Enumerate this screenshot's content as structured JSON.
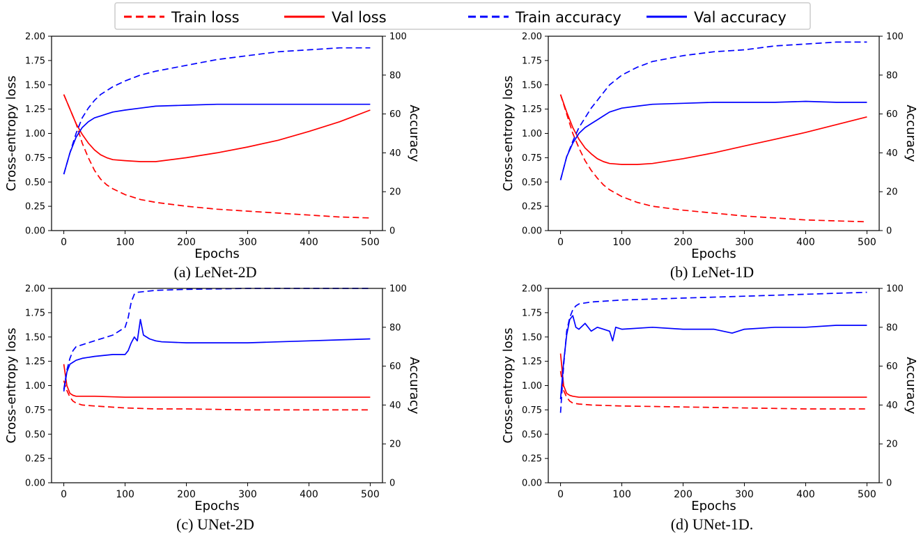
{
  "legend": {
    "placement": "top",
    "items": [
      {
        "label": "Train loss",
        "color": "#ff0000",
        "style": "dashed"
      },
      {
        "label": "Val loss",
        "color": "#ff0000",
        "style": "solid"
      },
      {
        "label": "Train accuracy",
        "color": "#0000ff",
        "style": "dashed"
      },
      {
        "label": "Val accuracy",
        "color": "#0000ff",
        "style": "solid"
      }
    ]
  },
  "colors": {
    "loss": "#ff0000",
    "accuracy": "#0000ff"
  },
  "chart_data": [
    {
      "type": "line",
      "caption": "(a) LeNet-2D",
      "xlabel": "Epochs",
      "ylabel_left": "Cross-entropy loss",
      "ylabel_right": "Accuracy",
      "xlim": [
        -20,
        520
      ],
      "ylim_left": [
        0,
        2.0
      ],
      "ylim_right": [
        0,
        100
      ],
      "xticks": [
        0,
        100,
        200,
        300,
        400,
        500
      ],
      "yticks_left": [
        0.0,
        0.25,
        0.5,
        0.75,
        1.0,
        1.25,
        1.5,
        1.75,
        2.0
      ],
      "yticks_right": [
        0,
        20,
        40,
        60,
        80,
        100
      ],
      "grid": false,
      "series": [
        {
          "name": "Train loss",
          "axis": "left",
          "style": "dashed",
          "x": [
            0,
            10,
            20,
            30,
            40,
            50,
            60,
            70,
            80,
            100,
            125,
            150,
            200,
            250,
            300,
            350,
            400,
            450,
            500
          ],
          "y": [
            1.4,
            1.25,
            1.1,
            0.9,
            0.75,
            0.62,
            0.53,
            0.47,
            0.43,
            0.37,
            0.32,
            0.29,
            0.25,
            0.22,
            0.2,
            0.18,
            0.16,
            0.14,
            0.13
          ]
        },
        {
          "name": "Val loss",
          "axis": "left",
          "style": "solid",
          "x": [
            0,
            10,
            20,
            30,
            40,
            50,
            60,
            70,
            80,
            100,
            125,
            150,
            200,
            250,
            300,
            350,
            400,
            450,
            500
          ],
          "y": [
            1.4,
            1.25,
            1.1,
            0.99,
            0.9,
            0.83,
            0.78,
            0.75,
            0.73,
            0.72,
            0.71,
            0.71,
            0.75,
            0.8,
            0.86,
            0.93,
            1.02,
            1.12,
            1.24
          ]
        },
        {
          "name": "Train accuracy",
          "axis": "right",
          "style": "dashed",
          "x": [
            0,
            10,
            20,
            30,
            40,
            50,
            60,
            70,
            80,
            100,
            125,
            150,
            200,
            250,
            300,
            350,
            400,
            450,
            500
          ],
          "y": [
            29,
            40,
            50,
            58,
            63,
            67,
            70,
            72,
            74,
            77,
            80,
            82,
            85,
            88,
            90,
            92,
            93,
            94,
            94
          ]
        },
        {
          "name": "Val accuracy",
          "axis": "right",
          "style": "solid",
          "x": [
            0,
            10,
            20,
            30,
            40,
            50,
            60,
            70,
            80,
            100,
            125,
            150,
            200,
            250,
            300,
            350,
            400,
            450,
            500
          ],
          "y": [
            29,
            40,
            48,
            53,
            56,
            58,
            59,
            60,
            61,
            62,
            63,
            64,
            64.5,
            65,
            65,
            65,
            65,
            65,
            65
          ]
        }
      ]
    },
    {
      "type": "line",
      "caption": "(b) LeNet-1D",
      "xlabel": "Epochs",
      "ylabel_left": "Cross-entropy loss",
      "ylabel_right": "Accuracy",
      "xlim": [
        -20,
        520
      ],
      "ylim_left": [
        0,
        2.0
      ],
      "ylim_right": [
        0,
        100
      ],
      "xticks": [
        0,
        100,
        200,
        300,
        400,
        500
      ],
      "yticks_left": [
        0.0,
        0.25,
        0.5,
        0.75,
        1.0,
        1.25,
        1.5,
        1.75,
        2.0
      ],
      "yticks_right": [
        0,
        20,
        40,
        60,
        80,
        100
      ],
      "grid": false,
      "series": [
        {
          "name": "Train loss",
          "axis": "left",
          "style": "dashed",
          "x": [
            0,
            10,
            20,
            30,
            40,
            50,
            60,
            70,
            80,
            100,
            125,
            150,
            200,
            250,
            300,
            350,
            400,
            450,
            500
          ],
          "y": [
            1.4,
            1.2,
            1.0,
            0.85,
            0.72,
            0.62,
            0.54,
            0.47,
            0.42,
            0.35,
            0.29,
            0.25,
            0.21,
            0.18,
            0.15,
            0.13,
            0.11,
            0.1,
            0.09
          ]
        },
        {
          "name": "Val loss",
          "axis": "left",
          "style": "solid",
          "x": [
            0,
            10,
            20,
            30,
            40,
            50,
            60,
            70,
            80,
            100,
            125,
            150,
            200,
            250,
            300,
            350,
            400,
            450,
            500
          ],
          "y": [
            1.4,
            1.22,
            1.06,
            0.94,
            0.85,
            0.79,
            0.74,
            0.71,
            0.69,
            0.68,
            0.68,
            0.69,
            0.74,
            0.8,
            0.87,
            0.94,
            1.01,
            1.09,
            1.17
          ]
        },
        {
          "name": "Train accuracy",
          "axis": "right",
          "style": "dashed",
          "x": [
            0,
            10,
            20,
            30,
            40,
            50,
            60,
            70,
            80,
            100,
            125,
            150,
            200,
            250,
            300,
            350,
            400,
            450,
            500
          ],
          "y": [
            26,
            38,
            46,
            53,
            58,
            63,
            67,
            71,
            75,
            80,
            84,
            87,
            90,
            92,
            93,
            95,
            96,
            97,
            97
          ]
        },
        {
          "name": "Val accuracy",
          "axis": "right",
          "style": "solid",
          "x": [
            0,
            10,
            20,
            30,
            40,
            50,
            60,
            70,
            80,
            100,
            125,
            150,
            200,
            250,
            300,
            350,
            400,
            450,
            500
          ],
          "y": [
            26,
            38,
            45,
            50,
            53,
            55,
            57,
            59,
            61,
            63,
            64,
            65,
            65.5,
            66,
            66,
            66,
            66.5,
            66,
            66
          ]
        }
      ]
    },
    {
      "type": "line",
      "caption": "(c) UNet-2D",
      "xlabel": "Epochs",
      "ylabel_left": "Cross-entropy loss",
      "ylabel_right": "Accuracy",
      "xlim": [
        -20,
        520
      ],
      "ylim_left": [
        0,
        2.0
      ],
      "ylim_right": [
        0,
        100
      ],
      "xticks": [
        0,
        100,
        200,
        300,
        400,
        500
      ],
      "yticks_left": [
        0.0,
        0.25,
        0.5,
        0.75,
        1.0,
        1.25,
        1.5,
        1.75,
        2.0
      ],
      "yticks_right": [
        0,
        20,
        40,
        60,
        80,
        100
      ],
      "grid": false,
      "series": [
        {
          "name": "Train loss",
          "axis": "left",
          "style": "dashed",
          "x": [
            0,
            5,
            10,
            15,
            20,
            30,
            50,
            100,
            150,
            200,
            300,
            400,
            500
          ],
          "y": [
            1.05,
            0.95,
            0.88,
            0.84,
            0.82,
            0.8,
            0.79,
            0.77,
            0.76,
            0.76,
            0.75,
            0.75,
            0.75
          ]
        },
        {
          "name": "Val loss",
          "axis": "left",
          "style": "solid",
          "x": [
            0,
            5,
            10,
            15,
            20,
            30,
            50,
            100,
            150,
            200,
            300,
            400,
            500
          ],
          "y": [
            1.22,
            1.0,
            0.92,
            0.9,
            0.89,
            0.89,
            0.89,
            0.88,
            0.88,
            0.88,
            0.88,
            0.88,
            0.88
          ]
        },
        {
          "name": "Train accuracy",
          "axis": "right",
          "style": "dashed",
          "x": [
            0,
            5,
            10,
            15,
            20,
            30,
            50,
            80,
            100,
            105,
            110,
            115,
            120,
            150,
            200,
            300,
            400,
            500
          ],
          "y": [
            48,
            58,
            64,
            68,
            70,
            71,
            73,
            76,
            80,
            85,
            93,
            97,
            98,
            99,
            99.5,
            100,
            100,
            100
          ]
        },
        {
          "name": "Val accuracy",
          "axis": "right",
          "style": "solid",
          "x": [
            0,
            5,
            10,
            15,
            20,
            30,
            50,
            80,
            100,
            105,
            110,
            115,
            120,
            125,
            130,
            140,
            150,
            160,
            200,
            250,
            300,
            350,
            400,
            450,
            500
          ],
          "y": [
            47,
            57,
            61,
            62,
            63,
            64,
            65,
            66,
            66,
            68,
            72,
            75,
            73,
            84,
            76,
            74,
            73,
            72.5,
            72,
            72,
            72,
            72.5,
            73,
            73.5,
            74
          ]
        }
      ]
    },
    {
      "type": "line",
      "caption": "(d) UNet-1D.",
      "xlabel": "Epochs",
      "ylabel_left": "Cross-entropy loss",
      "ylabel_right": "Accuracy",
      "xlim": [
        -20,
        520
      ],
      "ylim_left": [
        0,
        2.0
      ],
      "ylim_right": [
        0,
        100
      ],
      "xticks": [
        0,
        100,
        200,
        300,
        400,
        500
      ],
      "yticks_left": [
        0.0,
        0.25,
        0.5,
        0.75,
        1.0,
        1.25,
        1.5,
        1.75,
        2.0
      ],
      "yticks_right": [
        0,
        20,
        40,
        60,
        80,
        100
      ],
      "grid": false,
      "series": [
        {
          "name": "Train loss",
          "axis": "left",
          "style": "dashed",
          "x": [
            0,
            5,
            10,
            15,
            20,
            30,
            50,
            100,
            200,
            300,
            400,
            500
          ],
          "y": [
            1.15,
            0.95,
            0.88,
            0.84,
            0.82,
            0.81,
            0.8,
            0.79,
            0.78,
            0.77,
            0.76,
            0.76
          ]
        },
        {
          "name": "Val loss",
          "axis": "left",
          "style": "solid",
          "x": [
            0,
            5,
            10,
            15,
            20,
            30,
            50,
            100,
            200,
            300,
            400,
            500
          ],
          "y": [
            1.33,
            1.0,
            0.92,
            0.9,
            0.89,
            0.88,
            0.88,
            0.88,
            0.88,
            0.88,
            0.88,
            0.88
          ]
        },
        {
          "name": "Train accuracy",
          "axis": "right",
          "style": "dashed",
          "x": [
            0,
            5,
            10,
            15,
            20,
            25,
            30,
            50,
            100,
            200,
            300,
            400,
            500
          ],
          "y": [
            36,
            60,
            78,
            85,
            89,
            91,
            92,
            93,
            94,
            95,
            96,
            97,
            98
          ]
        },
        {
          "name": "Val accuracy",
          "axis": "right",
          "style": "solid",
          "x": [
            0,
            5,
            10,
            15,
            20,
            25,
            30,
            40,
            50,
            60,
            70,
            80,
            85,
            90,
            100,
            150,
            200,
            250,
            280,
            300,
            350,
            400,
            450,
            500
          ],
          "y": [
            43,
            62,
            76,
            84,
            86,
            80,
            79,
            82,
            78,
            80,
            79,
            78,
            73,
            80,
            79,
            80,
            79,
            79,
            77,
            79,
            80,
            80,
            81,
            81
          ]
        }
      ]
    }
  ]
}
